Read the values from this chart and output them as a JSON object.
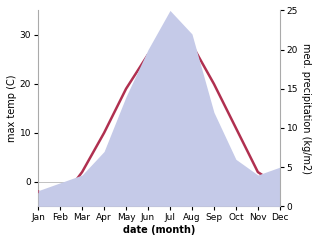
{
  "months": [
    "Jan",
    "Feb",
    "Mar",
    "Apr",
    "May",
    "Jun",
    "Jul",
    "Aug",
    "Sep",
    "Oct",
    "Nov",
    "Dec"
  ],
  "month_indices": [
    1,
    2,
    3,
    4,
    5,
    6,
    7,
    8,
    9,
    10,
    11,
    12
  ],
  "temperature": [
    -2,
    -4,
    2,
    10,
    19,
    26,
    30,
    28,
    20,
    11,
    2,
    -1
  ],
  "precipitation": [
    2,
    3,
    4,
    7,
    14,
    20,
    25,
    22,
    12,
    6,
    4,
    5
  ],
  "temp_color": "#b03050",
  "precip_fill_color": "#c5cae8",
  "precip_edge_color": "#b0b8e0",
  "ylabel_left": "max temp (C)",
  "ylabel_right": "med. precipitation (kg/m2)",
  "xlabel": "date (month)",
  "ylim_left": [
    -5,
    35
  ],
  "ylim_right": [
    0,
    25
  ],
  "temp_yticks": [
    0,
    10,
    20,
    30
  ],
  "precip_yticks": [
    0,
    5,
    10,
    15,
    20,
    25
  ],
  "background_color": "#ffffff",
  "label_fontsize": 7,
  "tick_fontsize": 6.5,
  "linewidth": 1.8
}
